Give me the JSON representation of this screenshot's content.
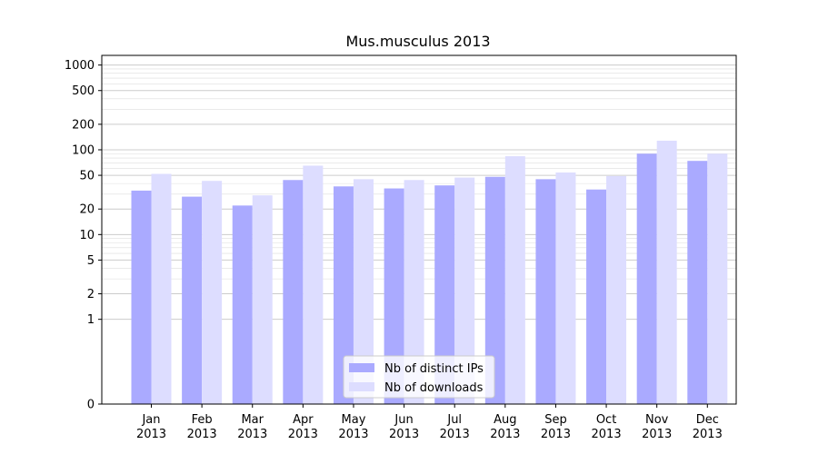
{
  "chart_data": {
    "type": "bar",
    "title": "Mus.musculus 2013",
    "xlabel": "",
    "ylabel": "",
    "y_scale": "symlog",
    "ylim": [
      0,
      1300
    ],
    "y_tick_labels": [
      "0",
      "1",
      "2",
      "5",
      "10",
      "20",
      "50",
      "100",
      "200",
      "500",
      "1000"
    ],
    "y_tick_values": [
      0,
      1,
      2,
      5,
      10,
      20,
      50,
      100,
      200,
      500,
      1000
    ],
    "categories": [
      {
        "month": "Jan",
        "year": "2013"
      },
      {
        "month": "Feb",
        "year": "2013"
      },
      {
        "month": "Mar",
        "year": "2013"
      },
      {
        "month": "Apr",
        "year": "2013"
      },
      {
        "month": "May",
        "year": "2013"
      },
      {
        "month": "Jun",
        "year": "2013"
      },
      {
        "month": "Jul",
        "year": "2013"
      },
      {
        "month": "Aug",
        "year": "2013"
      },
      {
        "month": "Sep",
        "year": "2013"
      },
      {
        "month": "Oct",
        "year": "2013"
      },
      {
        "month": "Nov",
        "year": "2013"
      },
      {
        "month": "Dec",
        "year": "2013"
      }
    ],
    "series": [
      {
        "name": "Nb of distinct IPs",
        "color": "#aaaaff",
        "values": [
          33,
          28,
          22,
          44,
          37,
          35,
          38,
          48,
          45,
          34,
          90,
          74
        ]
      },
      {
        "name": "Nb of downloads",
        "color": "#ddddff",
        "values": [
          52,
          43,
          29,
          65,
          45,
          44,
          47,
          84,
          54,
          49,
          128,
          90
        ]
      }
    ],
    "grid": true,
    "legend_position": "lower-center"
  }
}
